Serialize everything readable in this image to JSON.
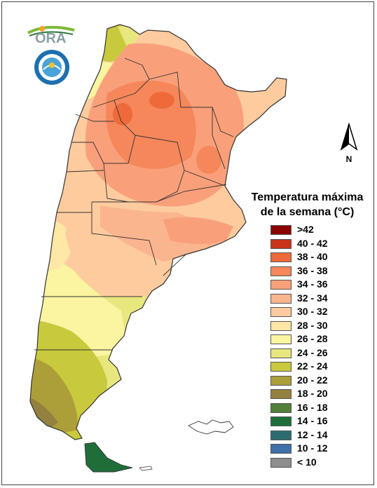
{
  "logos": {
    "ora_text": "ORA",
    "smn_seal_text": "SERVICIO METEOROLÓGICO NACIONAL · ARGENTINA"
  },
  "north_arrow": {
    "label": "N"
  },
  "legend": {
    "title_line1": "Temperatura máxima",
    "title_line2": "de la semana (°C)",
    "items": [
      {
        "label": ">42",
        "color": "#8B0000"
      },
      {
        "label": "40 - 42",
        "color": "#C8351B"
      },
      {
        "label": "38 - 40",
        "color": "#EE6A3A"
      },
      {
        "label": "36 - 38",
        "color": "#F5875A"
      },
      {
        "label": "34 - 36",
        "color": "#F9A07A"
      },
      {
        "label": "32 - 34",
        "color": "#FBB58E"
      },
      {
        "label": "30 - 32",
        "color": "#FDCB9E"
      },
      {
        "label": "28 - 30",
        "color": "#FFE7A6"
      },
      {
        "label": "26 - 28",
        "color": "#FBF4A0"
      },
      {
        "label": "24 - 26",
        "color": "#E8E67E"
      },
      {
        "label": "22 - 24",
        "color": "#C9C93E"
      },
      {
        "label": "20 - 22",
        "color": "#AC9F3A"
      },
      {
        "label": "18 - 20",
        "color": "#94803F"
      },
      {
        "label": "16 - 18",
        "color": "#52803A"
      },
      {
        "label": "14 - 16",
        "color": "#1F6E3A"
      },
      {
        "label": "12 - 14",
        "color": "#2E6B70"
      },
      {
        "label": "10 - 12",
        "color": "#3F70A8"
      },
      {
        "label": "< 10",
        "color": "#8E8E8E"
      }
    ]
  },
  "map": {
    "country": "Argentina",
    "variable": "weekly maximum temperature",
    "zones": {
      "north_max_range": "36 - 38",
      "centre_range": "32 - 36",
      "patagonia_north_range": "26 - 30",
      "patagonia_south_range": "20 - 24",
      "tierra_del_fuego_range": "14 - 16"
    }
  }
}
